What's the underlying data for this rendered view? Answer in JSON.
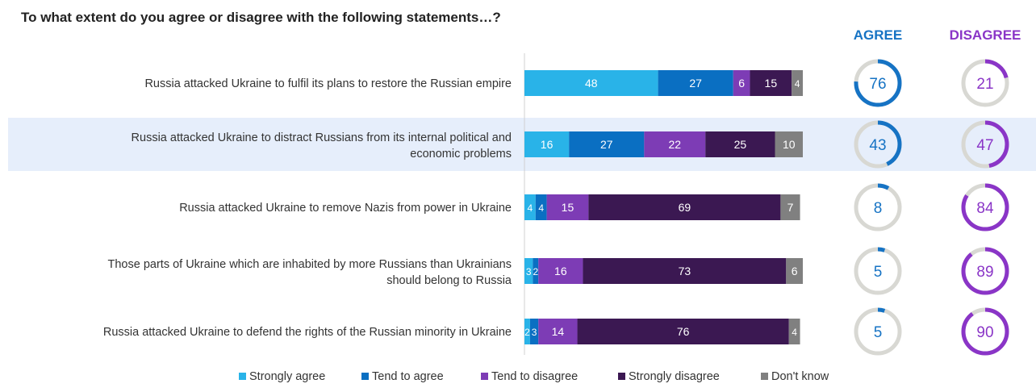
{
  "title": "To what extent do you agree or disagree with the following statements…?",
  "headers": {
    "agree": "AGREE",
    "disagree": "DISAGREE"
  },
  "colors": {
    "strongly_agree": "#29b3e8",
    "tend_agree": "#0a6fc2",
    "tend_disagree": "#7d3cb5",
    "strongly_disagree": "#3b1852",
    "dont_know": "#808080",
    "agree_header": "#1673c4",
    "disagree_header": "#8a35c7",
    "ring_track": "#d8d8d3",
    "highlight_row": "#e6eefb"
  },
  "chart_data": {
    "type": "bar",
    "orientation": "horizontal",
    "stacked": true,
    "xlim": [
      0,
      100
    ],
    "grid": false,
    "legend_position": "bottom",
    "categories": [
      "Russia attacked Ukraine to fulfil its plans to restore the Russian empire",
      "Russia attacked Ukraine to distract Russians from its internal political and economic problems",
      "Russia attacked Ukraine to remove Nazis from power in Ukraine",
      "Those parts of Ukraine which are inhabited by more Russians than Ukrainians should belong to Russia",
      "Russia attacked Ukraine to defend the rights of the Russian minority in Ukraine"
    ],
    "category_lines": [
      [
        "Russia attacked Ukraine to fulfil its plans to restore the Russian empire"
      ],
      [
        "Russia attacked Ukraine to distract Russians from its internal political and",
        "economic problems"
      ],
      [
        "Russia attacked Ukraine to remove Nazis from power in Ukraine"
      ],
      [
        "Those parts of Ukraine which are inhabited by more Russians than Ukrainians",
        "should belong to Russia"
      ],
      [
        "Russia attacked Ukraine to defend the rights of the Russian minority in Ukraine"
      ]
    ],
    "highlighted_index": 1,
    "series": [
      {
        "name": "Strongly agree",
        "color_key": "strongly_agree",
        "values": [
          48,
          16,
          4,
          3,
          2
        ]
      },
      {
        "name": "Tend to agree",
        "color_key": "tend_agree",
        "values": [
          27,
          27,
          4,
          2,
          3
        ]
      },
      {
        "name": "Tend to disagree",
        "color_key": "tend_disagree",
        "values": [
          6,
          22,
          15,
          16,
          14
        ]
      },
      {
        "name": "Strongly disagree",
        "color_key": "strongly_disagree",
        "values": [
          15,
          25,
          69,
          73,
          76
        ]
      },
      {
        "name": "Don't know",
        "color_key": "dont_know",
        "values": [
          4,
          10,
          7,
          6,
          4
        ]
      }
    ],
    "agree_totals": [
      76,
      43,
      8,
      5,
      5
    ],
    "disagree_totals": [
      21,
      47,
      84,
      89,
      90
    ]
  }
}
